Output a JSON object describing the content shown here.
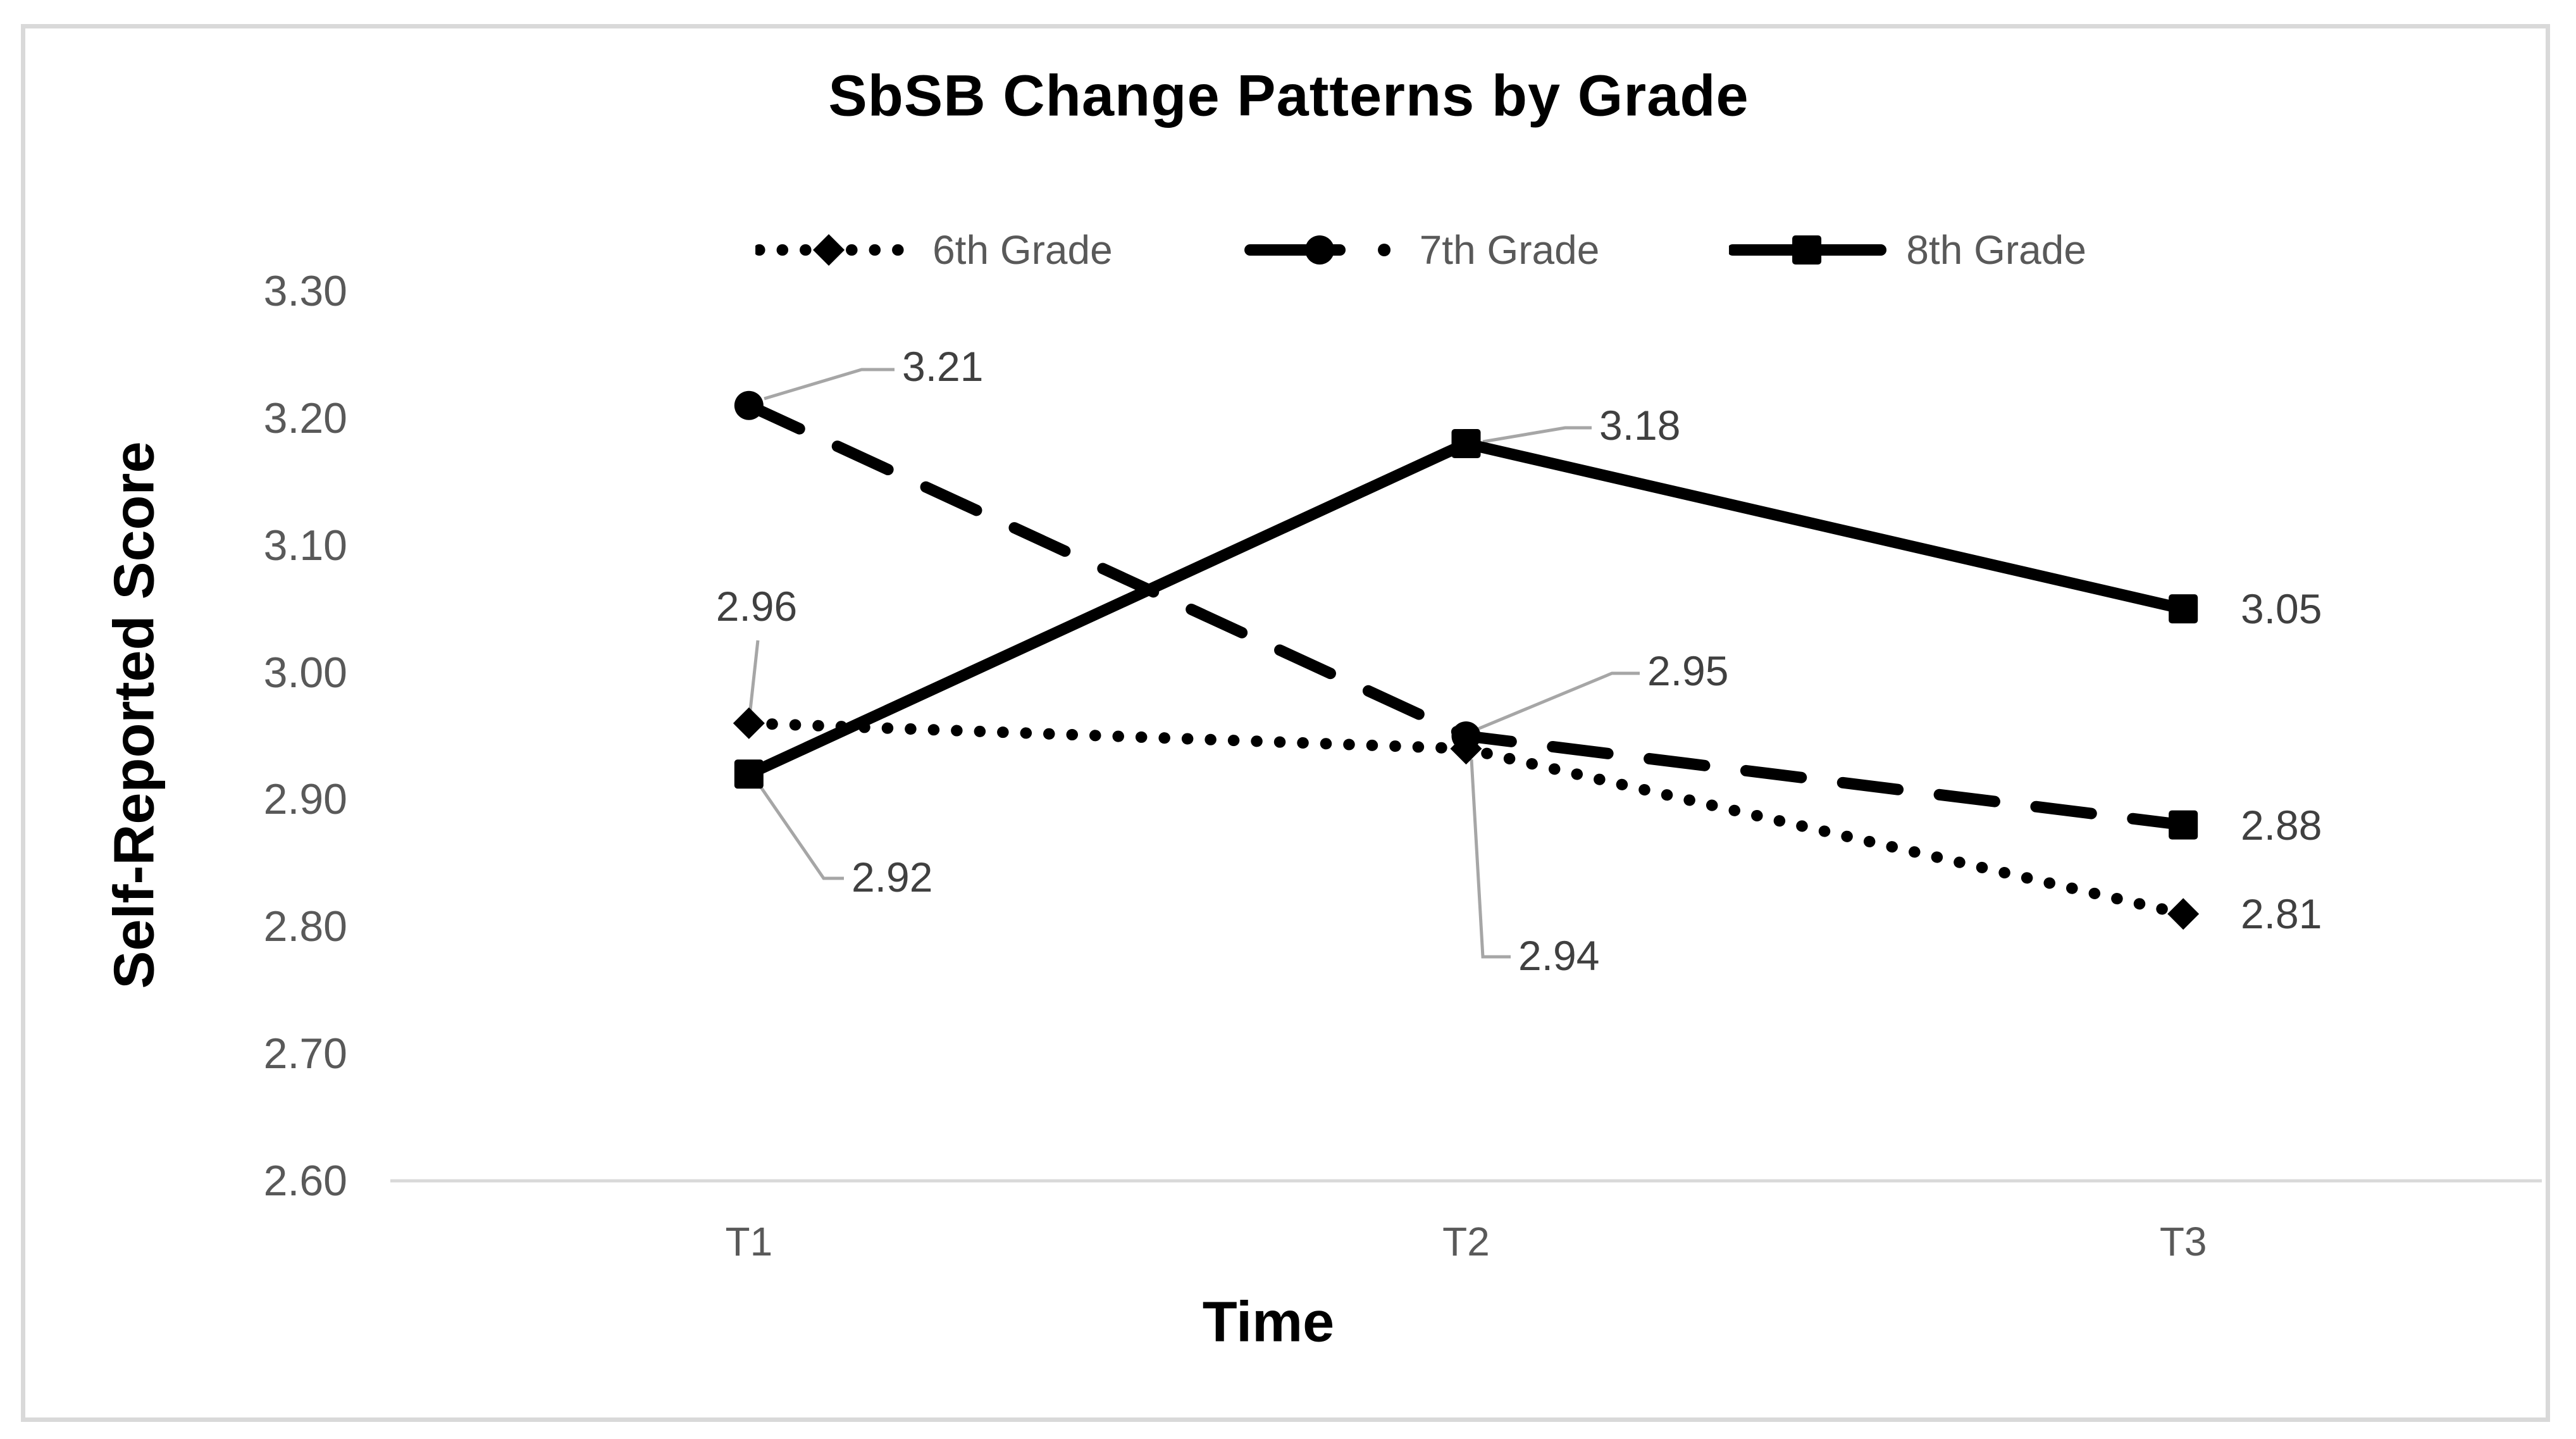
{
  "chart_data": {
    "type": "line",
    "title": "SbSB Change Patterns by Grade",
    "xlabel": "Time",
    "ylabel": "Self-Reported Score",
    "categories": [
      "T1",
      "T2",
      "T3"
    ],
    "series": [
      {
        "name": "6th Grade",
        "values": [
          2.96,
          2.94,
          2.81
        ],
        "line_style": "dotted",
        "marker": "diamond",
        "data_labels": [
          "2.96",
          "2.94",
          "2.81"
        ]
      },
      {
        "name": "7th Grade",
        "values": [
          3.21,
          2.95,
          2.88
        ],
        "line_style": "dashed",
        "marker": "circle",
        "data_labels": [
          "3.21",
          "2.95",
          "2.88"
        ]
      },
      {
        "name": "8th Grade",
        "values": [
          2.92,
          3.18,
          3.05
        ],
        "line_style": "solid",
        "marker": "square",
        "data_labels": [
          "2.92",
          "3.18",
          "3.05"
        ]
      }
    ],
    "y_ticks": [
      "3.30",
      "3.20",
      "3.10",
      "3.00",
      "2.90",
      "2.80",
      "2.70",
      "2.60"
    ],
    "ylim": [
      2.6,
      3.3
    ],
    "y_tick_step": 0.1,
    "grid": "baseline-only",
    "legend_position": "top-center"
  },
  "colors": {
    "series_line": "#000000",
    "title_text": "#000000",
    "axis_title_text": "#000000",
    "tick_text": "#595959",
    "legend_text": "#595959",
    "data_label_text": "#404040",
    "leader_line": "#a6a6a6",
    "grid_line": "#d9d9d9",
    "frame_border": "#d9d9d9",
    "background": "#ffffff"
  }
}
